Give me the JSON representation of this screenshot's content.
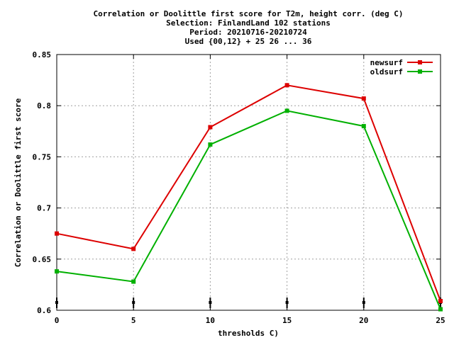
{
  "chart_data": {
    "type": "line",
    "title_lines": [
      "Correlation or Doolittle first score  for T2m, height corr. (deg C)",
      "Selection: FinlandLand    102 stations",
      "Period: 20210716-20210724",
      "Used {00,12} + 25 26 ... 36"
    ],
    "xlabel": "thresholds C)",
    "ylabel": "Correlation or Doolittle first score",
    "xlim": [
      0,
      25
    ],
    "ylim": [
      0.6,
      0.85
    ],
    "x_ticks": [
      0,
      5,
      10,
      15,
      20,
      25
    ],
    "y_ticks": [
      0.6,
      0.65,
      0.7,
      0.75,
      0.8,
      0.85
    ],
    "y_tick_labels": [
      "0.6",
      "0.65",
      "0.7",
      "0.75",
      "0.8",
      "0.85"
    ],
    "x": [
      0,
      5,
      10,
      15,
      20,
      25
    ],
    "grid": true,
    "legend_position": "top-right",
    "series": [
      {
        "name": "newsurf",
        "color": "#dd0000",
        "values": [
          0.675,
          0.66,
          0.779,
          0.82,
          0.807,
          0.609
        ]
      },
      {
        "name": "oldsurf",
        "color": "#00b000",
        "values": [
          0.638,
          0.628,
          0.762,
          0.795,
          0.78,
          0.601
        ]
      }
    ]
  }
}
